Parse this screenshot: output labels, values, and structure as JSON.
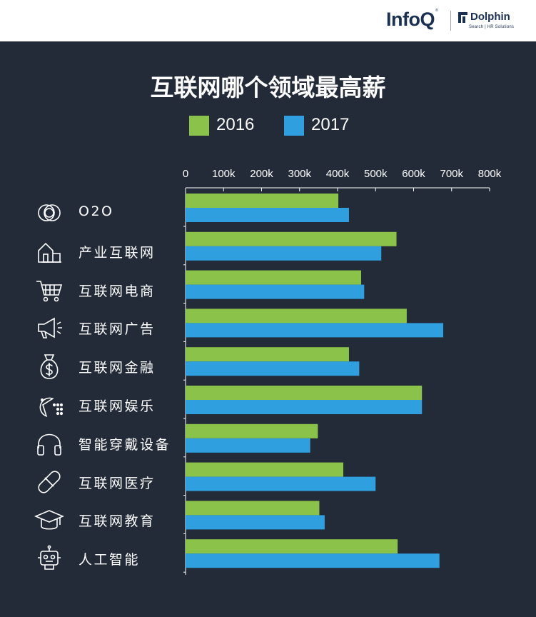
{
  "header": {
    "infoq_logo": "InfoQ",
    "dolphin_logo": "Dolphin",
    "dolphin_tagline": "Search | HR Solutions"
  },
  "colors": {
    "s2016": "#8bc34a",
    "s2017": "#2f9fe0"
  },
  "chart_data": {
    "type": "bar",
    "orientation": "horizontal",
    "title": "互联网哪个领域最高薪",
    "categories": [
      "O2O",
      "产业互联网",
      "互联网电商",
      "互联网广告",
      "互联网金融",
      "互联网娱乐",
      "智能穿戴设备",
      "互联网医疗",
      "互联网教育",
      "人工智能"
    ],
    "category_icons": [
      "o2o-coins-icon",
      "building-icon",
      "shopping-cart-icon",
      "megaphone-icon",
      "money-bag-icon",
      "pacman-icon",
      "headphones-icon",
      "pill-icon",
      "graduation-cap-icon",
      "robot-icon"
    ],
    "series": [
      {
        "name": "2016",
        "values": [
          402000,
          555000,
          462000,
          582000,
          430000,
          622000,
          348000,
          415000,
          352000,
          558000
        ]
      },
      {
        "name": "2017",
        "values": [
          430000,
          515000,
          470000,
          678000,
          457000,
          622000,
          328000,
          500000,
          366000,
          668000
        ]
      }
    ],
    "xticks": [
      "0",
      "100k",
      "200k",
      "300k",
      "400k",
      "500k",
      "600k",
      "700k",
      "800k"
    ],
    "xlim": [
      0,
      800000
    ],
    "legend_position": "top-center",
    "grid": "vertical-ticks"
  }
}
